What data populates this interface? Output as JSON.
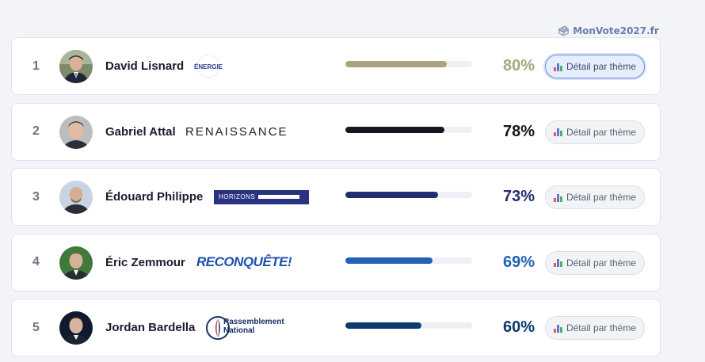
{
  "brand": {
    "icon": "ballot-box-icon",
    "label": "MonVote2027.fr"
  },
  "detail_label": "Détail par thème",
  "candidates": [
    {
      "rank": "1",
      "name": "David Lisnard",
      "party_logo": "ÉNERGIE",
      "score_label": "80%",
      "score": 80,
      "color": "#aaa57f",
      "active": true
    },
    {
      "rank": "2",
      "name": "Gabriel Attal",
      "party_logo": "RENAISSANCE",
      "score_label": "78%",
      "score": 78,
      "color": "#15171f",
      "active": false
    },
    {
      "rank": "3",
      "name": "Édouard Philippe",
      "party_logo": "HORIZONS",
      "score_label": "73%",
      "score": 73,
      "color": "#262c72",
      "active": false
    },
    {
      "rank": "4",
      "name": "Éric Zemmour",
      "party_logo": "RECONQUÊTE!",
      "score_label": "69%",
      "score": 69,
      "color": "#2561b4",
      "active": false
    },
    {
      "rank": "5",
      "name": "Jordan Bardella",
      "party_logo": "Rassemblement National",
      "score_label": "60%",
      "score": 60,
      "color": "#0e3b69",
      "active": false
    }
  ]
}
